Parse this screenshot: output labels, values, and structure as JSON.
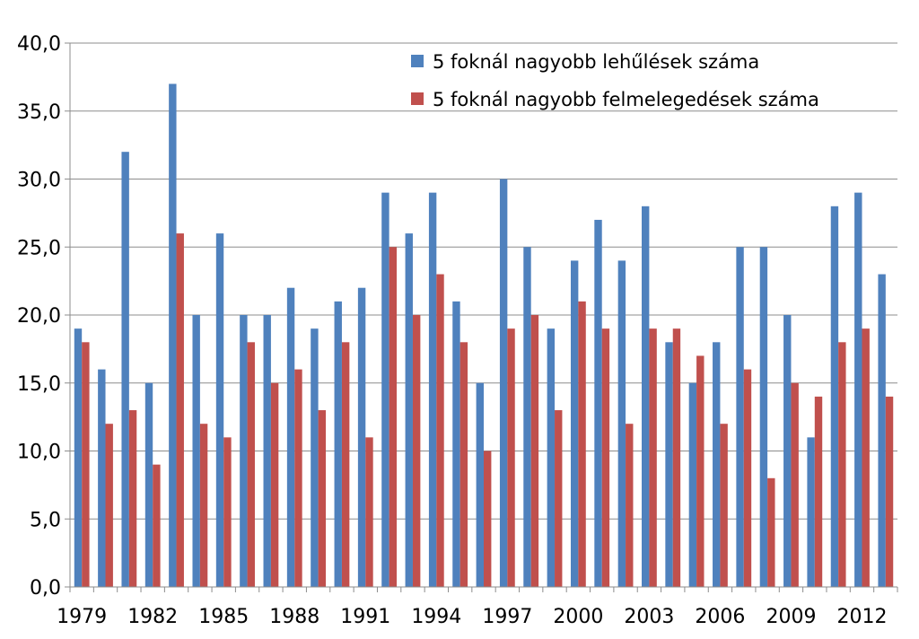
{
  "chart_data": {
    "type": "bar",
    "title": "",
    "xlabel": "",
    "ylabel": "",
    "ylim": [
      0,
      40
    ],
    "y_ticks": [
      "0,0",
      "5,0",
      "10,0",
      "15,0",
      "20,0",
      "25,0",
      "30,0",
      "35,0",
      "40,0"
    ],
    "y_tick_values": [
      0,
      5,
      10,
      15,
      20,
      25,
      30,
      35,
      40
    ],
    "grid": true,
    "legend_position": "top-right",
    "categories": [
      1979,
      1980,
      1981,
      1982,
      1983,
      1984,
      1985,
      1986,
      1987,
      1988,
      1989,
      1990,
      1991,
      1992,
      1993,
      1994,
      1995,
      1996,
      1997,
      1998,
      1999,
      2000,
      2001,
      2002,
      2003,
      2004,
      2005,
      2006,
      2007,
      2008,
      2009,
      2010,
      2011,
      2012,
      2013
    ],
    "x_tick_labels": [
      "1979",
      "1982",
      "1985",
      "1988",
      "1991",
      "1994",
      "1997",
      "2000",
      "2003",
      "2006",
      "2009",
      "2012"
    ],
    "series": [
      {
        "name": "5 foknál nagyobb lehűlések száma",
        "color": "#4F81BD",
        "values": [
          19,
          16,
          32,
          15,
          37,
          20,
          26,
          20,
          20,
          22,
          19,
          21,
          22,
          29,
          26,
          29,
          21,
          15,
          30,
          25,
          19,
          24,
          27,
          24,
          28,
          18,
          15,
          18,
          25,
          25,
          20,
          11,
          28,
          29,
          23
        ]
      },
      {
        "name": "5 foknál nagyobb felmelegedések száma",
        "color": "#C0504D",
        "values": [
          18,
          12,
          13,
          9,
          26,
          12,
          11,
          18,
          15,
          16,
          13,
          18,
          11,
          25,
          20,
          23,
          18,
          10,
          19,
          20,
          13,
          21,
          19,
          12,
          19,
          19,
          17,
          12,
          16,
          8,
          15,
          14,
          18,
          19,
          14
        ]
      }
    ]
  }
}
